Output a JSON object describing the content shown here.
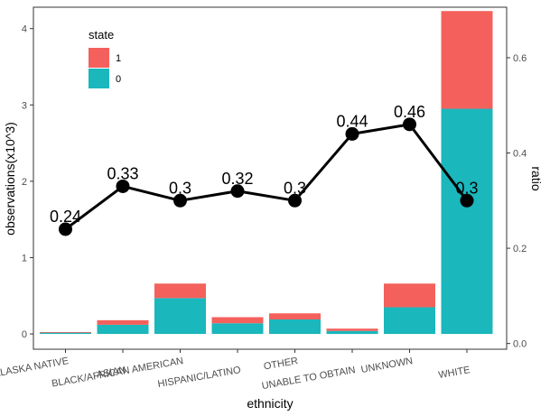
{
  "chart_data": {
    "type": "bar",
    "stacked": true,
    "categories": [
      "ALASKA NATIVE",
      "ASIAN",
      "BLACK/AFRICAN AMERICAN",
      "HISPANIC/LATINO",
      "OTHER",
      "UNABLE TO OBTAIN",
      "UNKNOWN",
      "WHITE"
    ],
    "series": [
      {
        "name": "0",
        "color": "#1ab7bd",
        "values": [
          0.02,
          0.12,
          0.47,
          0.14,
          0.19,
          0.04,
          0.35,
          2.95
        ]
      },
      {
        "name": "1",
        "color": "#f4615c",
        "values": [
          0.005,
          0.06,
          0.19,
          0.08,
          0.08,
          0.03,
          0.31,
          1.28
        ]
      }
    ],
    "line_series": {
      "axis": "right",
      "color": "#000000",
      "values": [
        0.24,
        0.33,
        0.3,
        0.32,
        0.3,
        0.44,
        0.46,
        0.3
      ],
      "labels": [
        "0.24",
        "0.33",
        "0.3",
        "0.32",
        "0.3",
        "0.44",
        "0.46",
        "0.3"
      ]
    },
    "xlabel": "ethnicity",
    "ylabel": "observations(x10^3)",
    "y2label": "ratio",
    "ylim": [
      -0.2,
      4.28
    ],
    "y2lim": [
      -0.012,
      0.706
    ],
    "yticks": [
      "0",
      "1",
      "2",
      "3",
      "4"
    ],
    "y2ticks": [
      "0.0",
      "0.2",
      "0.4",
      "0.6"
    ],
    "legend": {
      "title": "state",
      "placement": "top-left inside",
      "entries": [
        {
          "label": "1",
          "color": "#f4615c"
        },
        {
          "label": "0",
          "color": "#1ab7bd"
        }
      ]
    },
    "grid": false
  }
}
